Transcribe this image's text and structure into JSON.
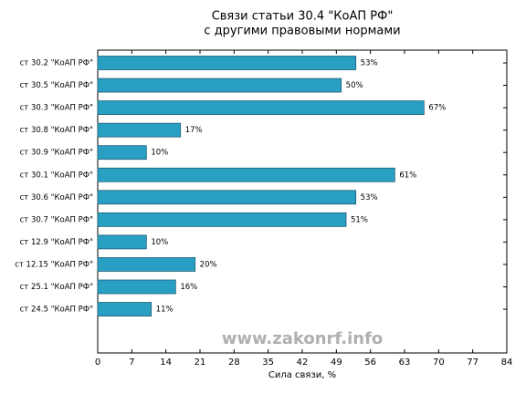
{
  "chart_data": {
    "type": "barh",
    "title": "Связи статьи 30.4 \"КоАП РФ\"",
    "subtitle": "с другими правовыми нормами",
    "xlabel": "Сила связи, %",
    "annotation": "www.zakonrf.info",
    "categories": [
      "ст 30.2 \"КоАП РФ\"",
      "ст 30.5 \"КоАП РФ\"",
      "ст 30.3 \"КоАП РФ\"",
      "ст 30.8 \"КоАП РФ\"",
      "ст 30.9 \"КоАП РФ\"",
      "ст 30.1 \"КоАП РФ\"",
      "ст 30.6 \"КоАП РФ\"",
      "ст 30.7 \"КоАП РФ\"",
      "ст 12.9 \"КоАП РФ\"",
      "ст 12.15 \"КоАП РФ\"",
      "ст 25.1 \"КоАП РФ\"",
      "ст 24.5 \"КоАП РФ\""
    ],
    "values": [
      53,
      50,
      67,
      17,
      10,
      61,
      53,
      51,
      10,
      20,
      16,
      11
    ],
    "value_labels": [
      "53%",
      "50%",
      "67%",
      "17%",
      "10%",
      "61%",
      "53%",
      "51%",
      "10%",
      "20%",
      "16%",
      "11%"
    ],
    "color": "#2a9fc4",
    "xlim": [
      0,
      84
    ],
    "xticks": [
      0,
      7,
      14,
      21,
      28,
      35,
      42,
      49,
      56,
      63,
      70,
      77,
      84
    ]
  }
}
